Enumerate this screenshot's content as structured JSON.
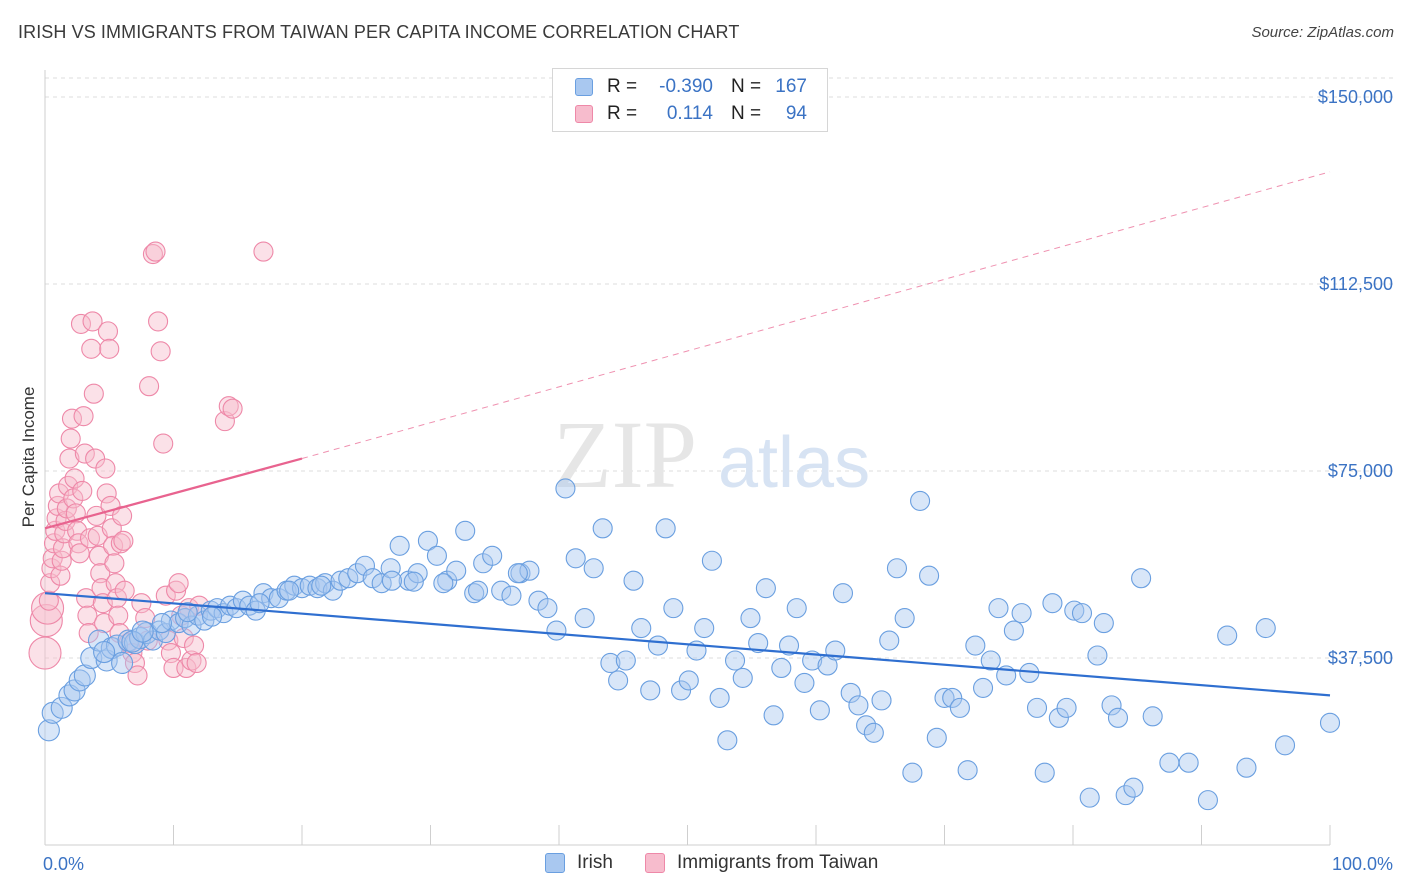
{
  "title": "IRISH VS IMMIGRANTS FROM TAIWAN PER CAPITA INCOME CORRELATION CHART",
  "source": "Source: ZipAtlas.com",
  "watermark": {
    "zip": "ZIP",
    "atlas": "atlas"
  },
  "legend": {
    "rows": [
      {
        "r_label": "R =",
        "r_value": "-0.390",
        "n_label": "N =",
        "n_value": "167"
      },
      {
        "r_label": "R =",
        "r_value": "0.114",
        "n_label": "N =",
        "n_value": "94"
      }
    ]
  },
  "bottom_legend": [
    {
      "label": "Irish"
    },
    {
      "label": "Immigrants from Taiwan"
    }
  ],
  "colors": {
    "irish_fill": "#a9c8f0",
    "irish_stroke": "#6a9fe0",
    "irish_line": "#2f6fd0",
    "taiwan_fill": "#f7bccd",
    "taiwan_stroke": "#ee88a8",
    "taiwan_line": "#e8638f",
    "axis_text": "#3b73c4",
    "grid": "#dcdcdc"
  },
  "chart_data": {
    "type": "scatter",
    "title": "IRISH VS IMMIGRANTS FROM TAIWAN PER CAPITA INCOME CORRELATION CHART",
    "ylabel": "Per Capita Income",
    "xlabel": "",
    "xlim": [
      0,
      100
    ],
    "ylim": [
      0,
      155000
    ],
    "x_tick_labels": [
      "0.0%",
      "100.0%"
    ],
    "y_ticks": [
      {
        "value": 37500,
        "label": "$37,500"
      },
      {
        "value": 75000,
        "label": "$75,000"
      },
      {
        "value": 112500,
        "label": "$112,500"
      },
      {
        "value": 150000,
        "label": "$150,000"
      }
    ],
    "grid": "horizontal-dashed",
    "legend_position": "top-center",
    "series": [
      {
        "name": "Irish",
        "r": -0.39,
        "n": 167,
        "trend": {
          "x": [
            0,
            100
          ],
          "y": [
            50500,
            30000
          ],
          "style": "solid"
        },
        "points": [
          [
            0.3,
            23000
          ],
          [
            0.6,
            26500
          ],
          [
            1.3,
            27500
          ],
          [
            1.9,
            30000
          ],
          [
            2.3,
            31000
          ],
          [
            2.7,
            33000
          ],
          [
            3.1,
            34000
          ],
          [
            3.6,
            37500
          ],
          [
            4.2,
            41000
          ],
          [
            4.8,
            37000
          ],
          [
            5.2,
            39500
          ],
          [
            5.6,
            40000
          ],
          [
            6.0,
            36500
          ],
          [
            6.5,
            41000
          ],
          [
            7.0,
            40500
          ],
          [
            7.4,
            41500
          ],
          [
            7.9,
            42500
          ],
          [
            8.4,
            41000
          ],
          [
            8.9,
            43000
          ],
          [
            9.4,
            42500
          ],
          [
            9.8,
            45000
          ],
          [
            10.4,
            44500
          ],
          [
            10.9,
            45500
          ],
          [
            11.4,
            44000
          ],
          [
            11.9,
            46000
          ],
          [
            12.4,
            45000
          ],
          [
            12.9,
            47000
          ],
          [
            13.4,
            47500
          ],
          [
            13.9,
            46500
          ],
          [
            14.4,
            48000
          ],
          [
            14.9,
            47500
          ],
          [
            15.4,
            49000
          ],
          [
            15.9,
            48000
          ],
          [
            16.4,
            47000
          ],
          [
            17.0,
            50500
          ],
          [
            17.6,
            49500
          ],
          [
            18.2,
            49500
          ],
          [
            18.8,
            51000
          ],
          [
            19.4,
            52000
          ],
          [
            20.0,
            51500
          ],
          [
            20.6,
            52000
          ],
          [
            21.2,
            51500
          ],
          [
            21.8,
            52500
          ],
          [
            22.4,
            51000
          ],
          [
            23.0,
            53000
          ],
          [
            23.6,
            53500
          ],
          [
            24.3,
            54500
          ],
          [
            24.9,
            56000
          ],
          [
            25.5,
            53500
          ],
          [
            26.2,
            52500
          ],
          [
            26.9,
            55500
          ],
          [
            27.6,
            60000
          ],
          [
            28.3,
            53000
          ],
          [
            29.0,
            54500
          ],
          [
            29.8,
            61000
          ],
          [
            30.5,
            58000
          ],
          [
            31.3,
            53000
          ],
          [
            32.0,
            55000
          ],
          [
            32.7,
            63000
          ],
          [
            33.4,
            50500
          ],
          [
            34.1,
            56500
          ],
          [
            34.8,
            58000
          ],
          [
            35.5,
            51000
          ],
          [
            36.3,
            50000
          ],
          [
            37.0,
            54500
          ],
          [
            37.7,
            55000
          ],
          [
            38.4,
            49000
          ],
          [
            39.1,
            47500
          ],
          [
            39.8,
            43000
          ],
          [
            40.5,
            71500
          ],
          [
            41.3,
            57500
          ],
          [
            42.0,
            45500
          ],
          [
            42.7,
            55500
          ],
          [
            43.4,
            63500
          ],
          [
            44.0,
            36500
          ],
          [
            44.6,
            33000
          ],
          [
            45.2,
            37000
          ],
          [
            45.8,
            53000
          ],
          [
            46.4,
            43500
          ],
          [
            47.1,
            31000
          ],
          [
            47.7,
            40000
          ],
          [
            48.3,
            63500
          ],
          [
            48.9,
            47500
          ],
          [
            49.5,
            31000
          ],
          [
            50.1,
            33000
          ],
          [
            50.7,
            39000
          ],
          [
            51.3,
            43500
          ],
          [
            51.9,
            57000
          ],
          [
            52.5,
            29500
          ],
          [
            53.1,
            21000
          ],
          [
            53.7,
            37000
          ],
          [
            54.3,
            33500
          ],
          [
            54.9,
            45500
          ],
          [
            55.5,
            40500
          ],
          [
            56.1,
            51500
          ],
          [
            56.7,
            26000
          ],
          [
            57.3,
            35500
          ],
          [
            57.9,
            40000
          ],
          [
            58.5,
            47500
          ],
          [
            59.1,
            32500
          ],
          [
            59.7,
            37000
          ],
          [
            60.3,
            27000
          ],
          [
            60.9,
            36000
          ],
          [
            61.5,
            39000
          ],
          [
            62.1,
            50500
          ],
          [
            62.7,
            30500
          ],
          [
            63.3,
            28000
          ],
          [
            63.9,
            24000
          ],
          [
            64.5,
            22500
          ],
          [
            65.1,
            29000
          ],
          [
            65.7,
            41000
          ],
          [
            66.3,
            55500
          ],
          [
            66.9,
            45500
          ],
          [
            67.5,
            14500
          ],
          [
            68.1,
            69000
          ],
          [
            68.8,
            54000
          ],
          [
            69.4,
            21500
          ],
          [
            70.0,
            29500
          ],
          [
            70.6,
            29500
          ],
          [
            71.2,
            27500
          ],
          [
            71.8,
            15000
          ],
          [
            72.4,
            40000
          ],
          [
            73.0,
            31500
          ],
          [
            73.6,
            37000
          ],
          [
            74.2,
            47500
          ],
          [
            74.8,
            34000
          ],
          [
            75.4,
            43000
          ],
          [
            76.0,
            46500
          ],
          [
            76.6,
            34500
          ],
          [
            77.2,
            27500
          ],
          [
            77.8,
            14500
          ],
          [
            78.4,
            48500
          ],
          [
            78.9,
            25500
          ],
          [
            79.5,
            27500
          ],
          [
            80.1,
            47000
          ],
          [
            80.7,
            46500
          ],
          [
            81.3,
            9500
          ],
          [
            81.9,
            38000
          ],
          [
            82.4,
            44500
          ],
          [
            83.0,
            28000
          ],
          [
            83.5,
            25500
          ],
          [
            84.1,
            10000
          ],
          [
            84.7,
            11500
          ],
          [
            85.3,
            53500
          ],
          [
            86.2,
            25800
          ],
          [
            87.5,
            16500
          ],
          [
            89.0,
            16500
          ],
          [
            90.5,
            9000
          ],
          [
            92.0,
            42000
          ],
          [
            93.5,
            15500
          ],
          [
            95.0,
            43500
          ],
          [
            96.5,
            20000
          ],
          [
            100.0,
            24500
          ],
          [
            21.5,
            52000
          ],
          [
            27.0,
            53000
          ],
          [
            31.0,
            52500
          ],
          [
            33.7,
            51000
          ],
          [
            36.8,
            54500
          ],
          [
            28.7,
            52800
          ],
          [
            19.0,
            51000
          ],
          [
            16.7,
            48500
          ],
          [
            13.0,
            45800
          ],
          [
            9.1,
            44500
          ],
          [
            6.8,
            40800
          ],
          [
            4.6,
            38700
          ],
          [
            7.6,
            42800
          ],
          [
            11.1,
            46700
          ]
        ]
      },
      {
        "name": "Immigrants from Taiwan",
        "r": 0.114,
        "n": 94,
        "trend": {
          "x": [
            0,
            20
          ],
          "y": [
            63500,
            77500
          ],
          "style": "solid"
        },
        "trend_extension": {
          "x": [
            20,
            100
          ],
          "y": [
            77500,
            135000
          ],
          "style": "dashed"
        },
        "points": [
          [
            0.0,
            38500
          ],
          [
            0.1,
            45000
          ],
          [
            0.2,
            47500
          ],
          [
            0.3,
            49000
          ],
          [
            0.4,
            52500
          ],
          [
            0.5,
            55500
          ],
          [
            0.6,
            57500
          ],
          [
            0.7,
            60500
          ],
          [
            0.8,
            63000
          ],
          [
            0.9,
            65500
          ],
          [
            1.0,
            68000
          ],
          [
            1.1,
            70500
          ],
          [
            1.2,
            54000
          ],
          [
            1.3,
            57000
          ],
          [
            1.4,
            59500
          ],
          [
            1.5,
            62500
          ],
          [
            1.6,
            65000
          ],
          [
            1.7,
            67500
          ],
          [
            1.8,
            72000
          ],
          [
            1.9,
            77500
          ],
          [
            2.0,
            81500
          ],
          [
            2.1,
            85500
          ],
          [
            2.2,
            69500
          ],
          [
            2.3,
            73500
          ],
          [
            2.4,
            66500
          ],
          [
            2.5,
            63000
          ],
          [
            2.6,
            60500
          ],
          [
            2.7,
            58500
          ],
          [
            2.8,
            104500
          ],
          [
            2.9,
            71000
          ],
          [
            3.0,
            86000
          ],
          [
            3.1,
            78500
          ],
          [
            3.2,
            49500
          ],
          [
            3.3,
            46000
          ],
          [
            3.4,
            42500
          ],
          [
            3.5,
            61500
          ],
          [
            3.6,
            99500
          ],
          [
            3.7,
            105000
          ],
          [
            3.8,
            90500
          ],
          [
            3.9,
            77500
          ],
          [
            4.0,
            66000
          ],
          [
            4.1,
            62000
          ],
          [
            4.2,
            58000
          ],
          [
            4.3,
            54500
          ],
          [
            4.4,
            51500
          ],
          [
            4.5,
            48500
          ],
          [
            4.6,
            44500
          ],
          [
            4.7,
            75500
          ],
          [
            4.8,
            70500
          ],
          [
            4.9,
            103000
          ],
          [
            5.0,
            99500
          ],
          [
            5.1,
            68000
          ],
          [
            5.2,
            63500
          ],
          [
            5.3,
            60000
          ],
          [
            5.4,
            56500
          ],
          [
            5.5,
            52500
          ],
          [
            5.6,
            49500
          ],
          [
            5.7,
            46000
          ],
          [
            5.8,
            42500
          ],
          [
            5.9,
            60500
          ],
          [
            6.0,
            66000
          ],
          [
            6.1,
            61000
          ],
          [
            6.2,
            51000
          ],
          [
            6.5,
            40500
          ],
          [
            6.8,
            38500
          ],
          [
            7.0,
            36500
          ],
          [
            7.2,
            34000
          ],
          [
            7.5,
            48500
          ],
          [
            7.8,
            45500
          ],
          [
            8.1,
            92000
          ],
          [
            8.4,
            118500
          ],
          [
            8.6,
            119000
          ],
          [
            8.8,
            105000
          ],
          [
            9.0,
            99000
          ],
          [
            9.2,
            80500
          ],
          [
            9.4,
            50000
          ],
          [
            9.6,
            41000
          ],
          [
            9.8,
            38500
          ],
          [
            10.0,
            35500
          ],
          [
            10.2,
            51000
          ],
          [
            10.4,
            52500
          ],
          [
            10.6,
            46000
          ],
          [
            10.8,
            41500
          ],
          [
            11.0,
            35500
          ],
          [
            11.2,
            47500
          ],
          [
            11.4,
            37000
          ],
          [
            11.6,
            40000
          ],
          [
            11.8,
            36500
          ],
          [
            12.0,
            48000
          ],
          [
            14.0,
            85000
          ],
          [
            14.3,
            88000
          ],
          [
            14.6,
            87500
          ],
          [
            17.0,
            119000
          ],
          [
            8.0,
            41000
          ]
        ]
      }
    ]
  }
}
